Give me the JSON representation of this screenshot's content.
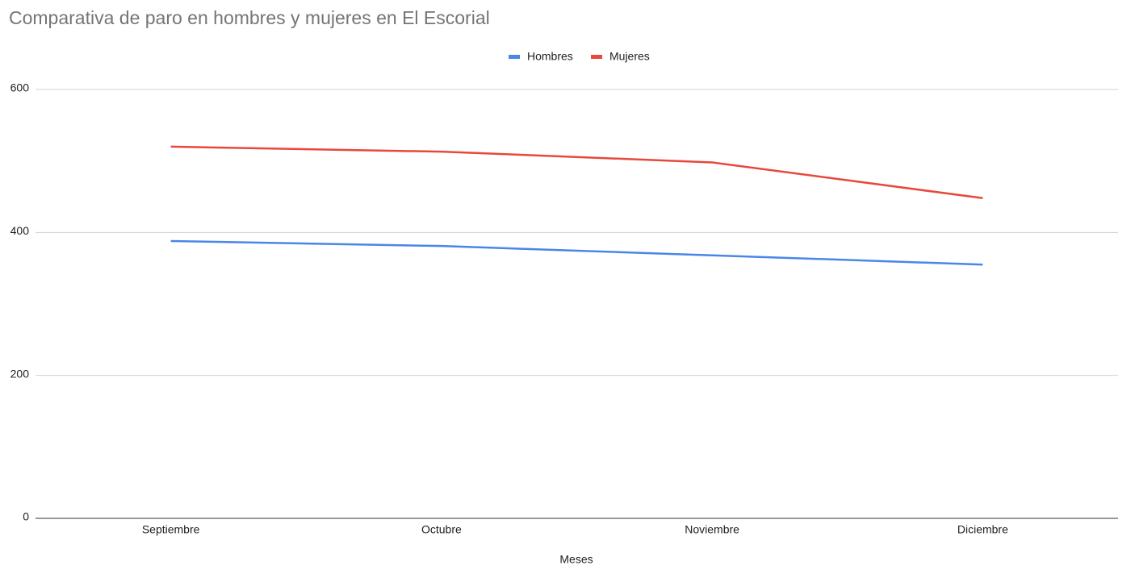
{
  "chart_data": {
    "type": "line",
    "title": "Comparativa de paro en hombres y mujeres en El Escorial",
    "x_label": "Meses",
    "categories": [
      "Septiembre",
      "Octubre",
      "Noviembre",
      "Diciembre"
    ],
    "series": [
      {
        "name": "Hombres",
        "color": "#4a86e8",
        "values": [
          388,
          381,
          368,
          355
        ]
      },
      {
        "name": "Mujeres",
        "color": "#e8483b",
        "values": [
          520,
          513,
          498,
          448
        ]
      }
    ],
    "ylim": [
      0,
      600
    ],
    "yticks": [
      0,
      200,
      400,
      600
    ],
    "grid": true,
    "legend": "top"
  }
}
